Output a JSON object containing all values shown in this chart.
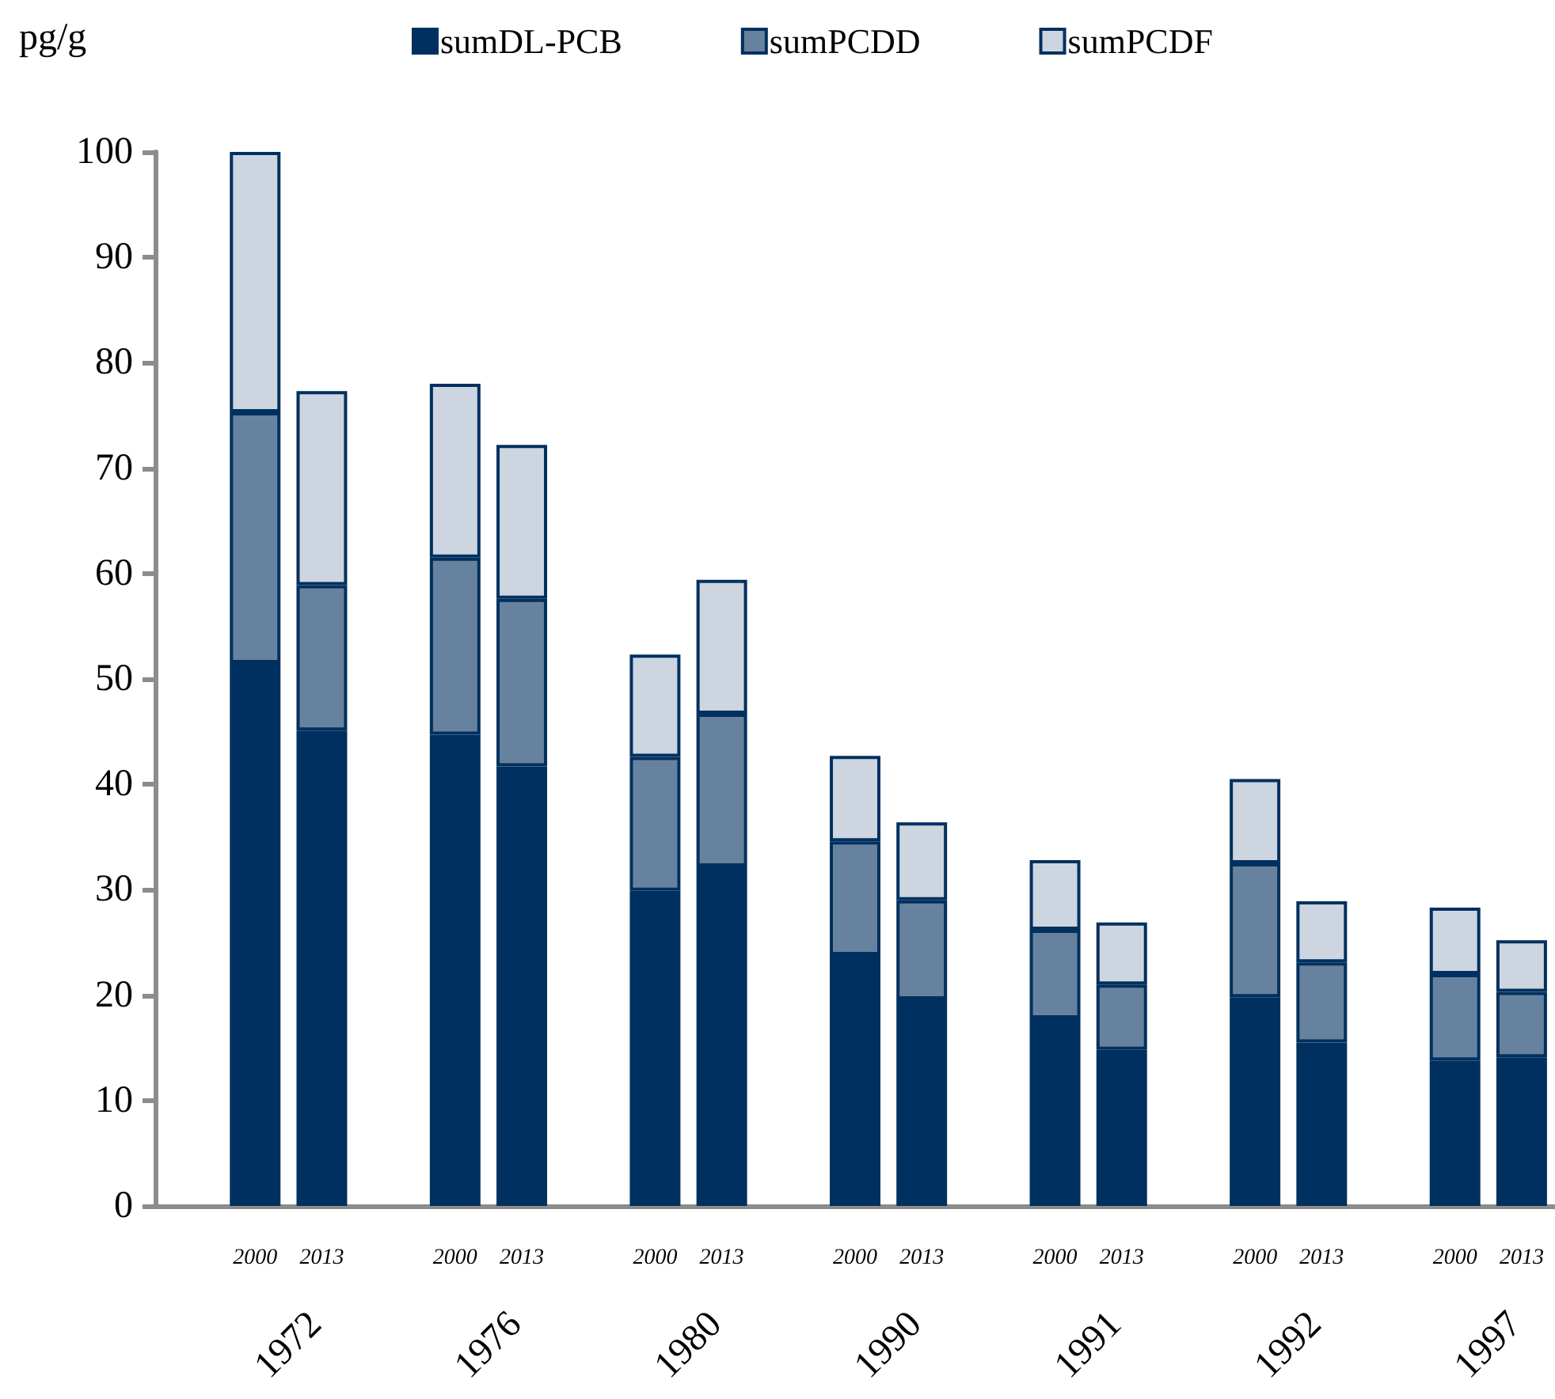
{
  "chart_data": {
    "type": "bar",
    "stacked": true,
    "ylabel": "pg/g",
    "categories": [
      null,
      "2000",
      "2013",
      null,
      "2000",
      "2013",
      null,
      "2000",
      "2013",
      null,
      "2000",
      "2013",
      null,
      "2000",
      "2013",
      null,
      "2000",
      "2013",
      null,
      "2000",
      "2013"
    ],
    "annotations": [
      "1972",
      "1976",
      "1980",
      "1990",
      "1991",
      "1992",
      "1997"
    ],
    "series": [
      {
        "name": "sumDL-PCB",
        "color": "#00305f",
        "values": [
          null,
          51.5,
          45.1,
          null,
          44.7,
          41.7,
          null,
          29.9,
          32.2,
          null,
          23.8,
          19.6,
          null,
          17.8,
          14.8,
          null,
          19.8,
          15.5,
          null,
          13.8,
          14.1
        ]
      },
      {
        "name": "sumPCDD",
        "color": "#67829f",
        "values": [
          null,
          23.8,
          13.8,
          null,
          16.8,
          15.9,
          null,
          12.7,
          14.5,
          null,
          10.8,
          9.4,
          null,
          8.4,
          6.2,
          null,
          12.7,
          7.6,
          null,
          8.2,
          6.2
        ]
      },
      {
        "name": "sumPCDF",
        "color": "#cdd5e0",
        "values": [
          null,
          24.7,
          18.4,
          null,
          16.5,
          14.6,
          null,
          9.7,
          12.7,
          null,
          8.1,
          7.4,
          null,
          6.6,
          5.9,
          null,
          8.0,
          5.8,
          null,
          6.3,
          4.9
        ]
      }
    ],
    "ylim": [
      0,
      100
    ],
    "yticks": [
      0,
      10,
      20,
      30,
      40,
      50,
      60,
      70,
      80,
      90,
      100
    ],
    "grid": false,
    "legend": "top"
  }
}
